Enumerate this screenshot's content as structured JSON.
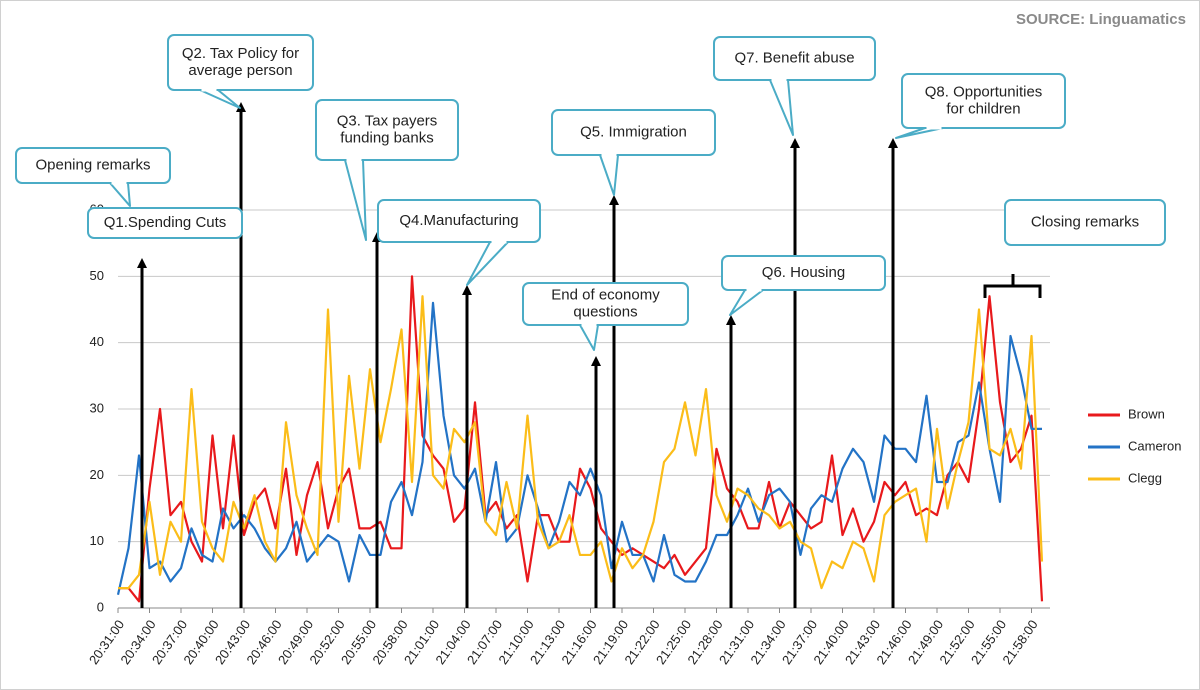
{
  "chart_data": {
    "type": "line",
    "source": "SOURCE: Linguamatics",
    "categories": [
      "20:31:00",
      null,
      null,
      "20:34:00",
      null,
      null,
      "20:37:00",
      null,
      null,
      "20:40:00",
      null,
      null,
      "20:43:00",
      null,
      null,
      "20:46:00",
      null,
      null,
      "20:49:00",
      null,
      null,
      "20:52:00",
      null,
      null,
      "20:55:00",
      null,
      null,
      "20:58:00",
      null,
      null,
      "21:01:00",
      null,
      null,
      "21:04:00",
      null,
      null,
      "21:07:00",
      null,
      null,
      "21:10:00",
      null,
      null,
      "21:13:00",
      null,
      null,
      "21:16:00",
      null,
      null,
      "21:19:00",
      null,
      null,
      "21:22:00",
      null,
      null,
      "21:25:00",
      null,
      null,
      "21:28:00",
      null,
      null,
      "21:31:00",
      null,
      null,
      "21:34:00",
      null,
      null,
      "21:37:00",
      null,
      null,
      "21:40:00",
      null,
      null,
      "21:43:00",
      null,
      null,
      "21:46:00",
      null,
      null,
      "21:49:00",
      null,
      null,
      "21:52:00",
      null,
      null,
      "21:55:00",
      null,
      null,
      "21:58:00",
      null
    ],
    "series": [
      {
        "name": "Brown",
        "color": "#e8191c",
        "values": [
          3,
          3,
          1,
          18,
          30,
          14,
          16,
          10,
          7,
          26,
          12,
          26,
          11,
          16,
          18,
          12,
          21,
          8,
          17,
          22,
          12,
          18,
          21,
          12,
          12,
          13,
          9,
          9,
          50,
          26,
          23,
          21,
          13,
          15,
          31,
          14,
          16,
          12,
          14,
          4,
          14,
          14,
          10,
          10,
          21,
          18,
          12,
          10,
          8,
          9,
          8,
          7,
          6,
          8,
          5,
          7,
          9,
          24,
          18,
          16,
          12,
          12,
          19,
          12,
          16,
          14,
          12,
          13,
          23,
          11,
          15,
          10,
          13,
          19,
          17,
          19,
          14,
          15,
          14,
          20,
          22,
          19,
          30,
          47,
          31,
          22,
          24,
          29,
          1
        ]
      },
      {
        "name": "Cameron",
        "color": "#2373c6",
        "values": [
          2,
          9,
          23,
          6,
          7,
          4,
          6,
          12,
          8,
          7,
          15,
          12,
          14,
          12,
          9,
          7,
          9,
          13,
          7,
          9,
          11,
          10,
          4,
          11,
          8,
          8,
          16,
          19,
          14,
          22,
          46,
          29,
          20,
          18,
          21,
          13,
          22,
          10,
          12,
          20,
          15,
          9,
          13,
          19,
          17,
          21,
          17,
          6,
          13,
          8,
          8,
          4,
          11,
          5,
          4,
          4,
          7,
          11,
          11,
          14,
          18,
          13,
          17,
          18,
          16,
          8,
          15,
          17,
          16,
          21,
          24,
          22,
          16,
          26,
          24,
          24,
          22,
          32,
          19,
          19,
          25,
          26,
          34,
          24,
          16,
          41,
          35,
          27,
          27
        ]
      },
      {
        "name": "Clegg",
        "color": "#fbbd19",
        "values": [
          3,
          3,
          5,
          16,
          5,
          13,
          10,
          33,
          13,
          9,
          7,
          16,
          12,
          17,
          10,
          7,
          28,
          17,
          12,
          8,
          45,
          13,
          35,
          21,
          36,
          25,
          33,
          42,
          19,
          47,
          20,
          18,
          27,
          25,
          28,
          13,
          11,
          19,
          12,
          29,
          13,
          9,
          10,
          14,
          8,
          8,
          10,
          4,
          9,
          6,
          8,
          13,
          22,
          24,
          31,
          23,
          33,
          17,
          13,
          18,
          17,
          15,
          14,
          12,
          13,
          10,
          9,
          3,
          7,
          6,
          10,
          9,
          4,
          14,
          16,
          17,
          18,
          10,
          27,
          15,
          22,
          28,
          45,
          24,
          23,
          27,
          21,
          41,
          7
        ]
      }
    ],
    "ylim": [
      0,
      60
    ],
    "yticks": [
      0,
      10,
      20,
      30,
      40,
      50,
      60
    ],
    "grid": true,
    "annotations": [
      {
        "text": [
          "Opening remarks"
        ]
      },
      {
        "text": [
          "Q1.Spending Cuts"
        ]
      },
      {
        "text": [
          "Q2. Tax Policy for",
          "average person"
        ]
      },
      {
        "text": [
          "Q3. Tax payers",
          "funding banks"
        ]
      },
      {
        "text": [
          "Q4.Manufacturing"
        ]
      },
      {
        "text": [
          "End of economy",
          "questions"
        ]
      },
      {
        "text": [
          "Q5. Immigration"
        ]
      },
      {
        "text": [
          "Q6. Housing"
        ]
      },
      {
        "text": [
          "Q7. Benefit abuse"
        ]
      },
      {
        "text": [
          "Q8. Opportunities",
          "for children"
        ]
      },
      {
        "text": [
          "Closing remarks"
        ]
      }
    ]
  }
}
